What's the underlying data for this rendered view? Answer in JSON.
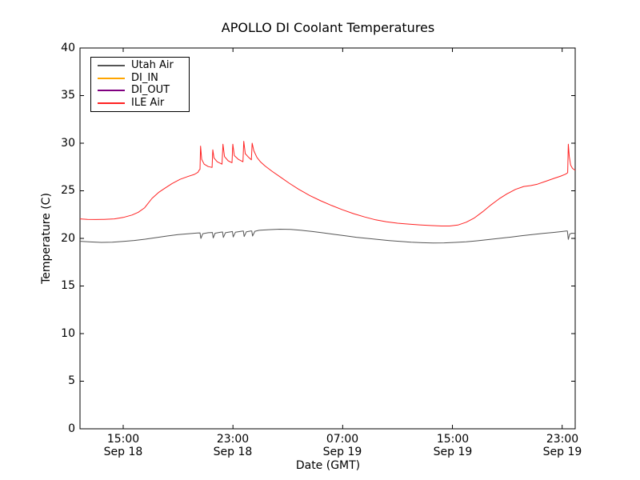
{
  "figure": {
    "background": "#ffffff",
    "title": "APOLLO DI Coolant Temperatures"
  },
  "chart_data": {
    "type": "line",
    "title": "APOLLO DI Coolant Temperatures",
    "xlabel": "Date (GMT)",
    "ylabel": "Temperature (C)",
    "x_unit": "hours since Sep 18 00:00 GMT",
    "xlim": [
      11.85,
      47.95
    ],
    "ylim": [
      0,
      40
    ],
    "grid": false,
    "legend_position": "upper left",
    "x_ticks": [
      {
        "hours": 15,
        "time": "15:00",
        "date": "Sep 18"
      },
      {
        "hours": 23,
        "time": "23:00",
        "date": "Sep 18"
      },
      {
        "hours": 31,
        "time": "07:00",
        "date": "Sep 19"
      },
      {
        "hours": 39,
        "time": "15:00",
        "date": "Sep 19"
      },
      {
        "hours": 47,
        "time": "23:00",
        "date": "Sep 19"
      }
    ],
    "y_ticks": [
      {
        "value": 0,
        "label": "0"
      },
      {
        "value": 5,
        "label": "5"
      },
      {
        "value": 10,
        "label": "10"
      },
      {
        "value": 15,
        "label": "15"
      },
      {
        "value": 20,
        "label": "20"
      },
      {
        "value": 25,
        "label": "25"
      },
      {
        "value": 30,
        "label": "30"
      },
      {
        "value": 35,
        "label": "35"
      },
      {
        "value": 40,
        "label": "40"
      }
    ],
    "series": [
      {
        "name": "Utah Air",
        "color": "#555555",
        "points": [
          [
            11.85,
            19.7
          ],
          [
            12.6,
            19.63
          ],
          [
            13.4,
            19.58
          ],
          [
            14.2,
            19.6
          ],
          [
            15.0,
            19.68
          ],
          [
            15.8,
            19.78
          ],
          [
            16.6,
            19.92
          ],
          [
            17.4,
            20.08
          ],
          [
            18.2,
            20.25
          ],
          [
            19.0,
            20.4
          ],
          [
            19.8,
            20.5
          ],
          [
            20.4,
            20.56
          ],
          [
            20.6,
            20.58
          ],
          [
            20.66,
            20.0
          ],
          [
            20.8,
            20.5
          ],
          [
            21.2,
            20.6
          ],
          [
            21.5,
            20.62
          ],
          [
            21.56,
            20.05
          ],
          [
            21.7,
            20.55
          ],
          [
            22.1,
            20.65
          ],
          [
            22.24,
            20.67
          ],
          [
            22.3,
            20.1
          ],
          [
            22.45,
            20.6
          ],
          [
            22.85,
            20.7
          ],
          [
            22.96,
            20.72
          ],
          [
            23.02,
            20.15
          ],
          [
            23.18,
            20.65
          ],
          [
            23.6,
            20.75
          ],
          [
            23.76,
            20.77
          ],
          [
            23.82,
            20.2
          ],
          [
            23.98,
            20.7
          ],
          [
            24.3,
            20.78
          ],
          [
            24.37,
            20.78
          ],
          [
            24.43,
            20.25
          ],
          [
            24.6,
            20.75
          ],
          [
            24.9,
            20.85
          ],
          [
            25.6,
            20.92
          ],
          [
            26.4,
            20.97
          ],
          [
            27.2,
            20.95
          ],
          [
            28.0,
            20.85
          ],
          [
            28.8,
            20.72
          ],
          [
            29.6,
            20.58
          ],
          [
            30.4,
            20.42
          ],
          [
            31.2,
            20.27
          ],
          [
            32.0,
            20.12
          ],
          [
            32.8,
            20.0
          ],
          [
            33.6,
            19.88
          ],
          [
            34.4,
            19.77
          ],
          [
            35.2,
            19.68
          ],
          [
            36.0,
            19.6
          ],
          [
            36.8,
            19.55
          ],
          [
            37.6,
            19.52
          ],
          [
            38.4,
            19.53
          ],
          [
            39.2,
            19.58
          ],
          [
            40.0,
            19.65
          ],
          [
            40.8,
            19.75
          ],
          [
            41.6,
            19.87
          ],
          [
            42.4,
            20.0
          ],
          [
            43.2,
            20.13
          ],
          [
            44.0,
            20.27
          ],
          [
            44.8,
            20.4
          ],
          [
            45.6,
            20.52
          ],
          [
            46.4,
            20.63
          ],
          [
            47.0,
            20.72
          ],
          [
            47.3,
            20.77
          ],
          [
            47.38,
            20.78
          ],
          [
            47.45,
            19.9
          ],
          [
            47.55,
            20.45
          ],
          [
            47.7,
            20.55
          ],
          [
            47.95,
            20.52
          ]
        ]
      },
      {
        "name": "DI_IN",
        "color": "#ffa500",
        "points": []
      },
      {
        "name": "DI_OUT",
        "color": "#800080",
        "points": []
      },
      {
        "name": "ILE Air",
        "color": "#ff2222",
        "points": [
          [
            11.85,
            22.05
          ],
          [
            12.4,
            22.0
          ],
          [
            13.0,
            21.98
          ],
          [
            13.6,
            22.0
          ],
          [
            14.36,
            22.05
          ],
          [
            15.0,
            22.2
          ],
          [
            15.64,
            22.45
          ],
          [
            16.1,
            22.75
          ],
          [
            16.55,
            23.2
          ],
          [
            17.1,
            24.2
          ],
          [
            17.6,
            24.85
          ],
          [
            17.97,
            25.2
          ],
          [
            18.55,
            25.75
          ],
          [
            19.14,
            26.2
          ],
          [
            19.7,
            26.5
          ],
          [
            20.19,
            26.72
          ],
          [
            20.45,
            26.95
          ],
          [
            20.55,
            27.2
          ],
          [
            20.6,
            27.25
          ],
          [
            20.64,
            29.7
          ],
          [
            20.72,
            28.3
          ],
          [
            20.9,
            27.8
          ],
          [
            21.2,
            27.55
          ],
          [
            21.48,
            27.45
          ],
          [
            21.53,
            29.3
          ],
          [
            21.62,
            28.45
          ],
          [
            21.85,
            28.05
          ],
          [
            22.2,
            27.8
          ],
          [
            22.27,
            29.9
          ],
          [
            22.38,
            28.6
          ],
          [
            22.65,
            28.15
          ],
          [
            22.93,
            27.95
          ],
          [
            22.99,
            29.9
          ],
          [
            23.1,
            28.7
          ],
          [
            23.4,
            28.3
          ],
          [
            23.73,
            28.05
          ],
          [
            23.79,
            30.2
          ],
          [
            23.9,
            28.9
          ],
          [
            24.15,
            28.5
          ],
          [
            24.34,
            28.25
          ],
          [
            24.4,
            30.0
          ],
          [
            24.52,
            29.2
          ],
          [
            24.75,
            28.5
          ],
          [
            25.0,
            28.05
          ],
          [
            25.35,
            27.6
          ],
          [
            25.85,
            27.05
          ],
          [
            26.45,
            26.45
          ],
          [
            27.1,
            25.8
          ],
          [
            27.8,
            25.15
          ],
          [
            28.6,
            24.5
          ],
          [
            29.4,
            23.95
          ],
          [
            30.2,
            23.45
          ],
          [
            31.0,
            23.0
          ],
          [
            31.8,
            22.6
          ],
          [
            32.6,
            22.25
          ],
          [
            33.4,
            21.95
          ],
          [
            34.2,
            21.75
          ],
          [
            35.0,
            21.6
          ],
          [
            35.8,
            21.5
          ],
          [
            36.6,
            21.42
          ],
          [
            37.4,
            21.35
          ],
          [
            38.2,
            21.3
          ],
          [
            38.8,
            21.3
          ],
          [
            39.4,
            21.4
          ],
          [
            40.0,
            21.7
          ],
          [
            40.6,
            22.15
          ],
          [
            41.2,
            22.8
          ],
          [
            41.8,
            23.5
          ],
          [
            42.4,
            24.15
          ],
          [
            43.0,
            24.7
          ],
          [
            43.6,
            25.15
          ],
          [
            44.2,
            25.45
          ],
          [
            44.7,
            25.55
          ],
          [
            45.2,
            25.7
          ],
          [
            45.8,
            26.0
          ],
          [
            46.4,
            26.3
          ],
          [
            46.9,
            26.55
          ],
          [
            47.25,
            26.75
          ],
          [
            47.4,
            26.9
          ],
          [
            47.45,
            29.9
          ],
          [
            47.52,
            28.6
          ],
          [
            47.62,
            27.7
          ],
          [
            47.75,
            27.35
          ],
          [
            47.95,
            27.15
          ]
        ]
      }
    ]
  }
}
